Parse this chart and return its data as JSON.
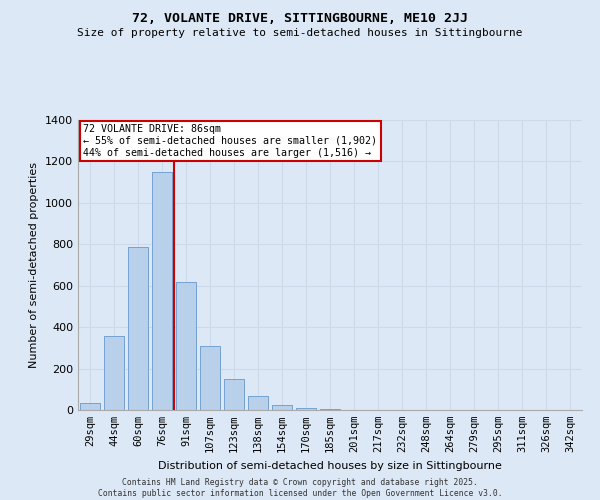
{
  "title1": "72, VOLANTE DRIVE, SITTINGBOURNE, ME10 2JJ",
  "title2": "Size of property relative to semi-detached houses in Sittingbourne",
  "xlabel": "Distribution of semi-detached houses by size in Sittingbourne",
  "ylabel": "Number of semi-detached properties",
  "categories": [
    "29sqm",
    "44sqm",
    "60sqm",
    "76sqm",
    "91sqm",
    "107sqm",
    "123sqm",
    "138sqm",
    "154sqm",
    "170sqm",
    "185sqm",
    "201sqm",
    "217sqm",
    "232sqm",
    "248sqm",
    "264sqm",
    "279sqm",
    "295sqm",
    "311sqm",
    "326sqm",
    "342sqm"
  ],
  "bar_heights": [
    35,
    355,
    785,
    1150,
    620,
    310,
    148,
    68,
    25,
    8,
    3,
    0,
    0,
    0,
    0,
    0,
    0,
    0,
    0,
    0,
    0
  ],
  "bar_color": "#b8d0ea",
  "bar_edge_color": "#6699cc",
  "ylim": [
    0,
    1400
  ],
  "yticks": [
    0,
    200,
    400,
    600,
    800,
    1000,
    1200,
    1400
  ],
  "property_label": "72 VOLANTE DRIVE: 86sqm",
  "annotation_line1": "← 55% of semi-detached houses are smaller (1,902)",
  "annotation_line2": "44% of semi-detached houses are larger (1,516) →",
  "annotation_box_color": "#ffffff",
  "annotation_border_color": "#cc0000",
  "vline_color": "#cc0000",
  "vline_x": 3.5,
  "grid_color": "#ccdaec",
  "background_color": "#dce8f5",
  "footer1": "Contains HM Land Registry data © Crown copyright and database right 2025.",
  "footer2": "Contains public sector information licensed under the Open Government Licence v3.0."
}
